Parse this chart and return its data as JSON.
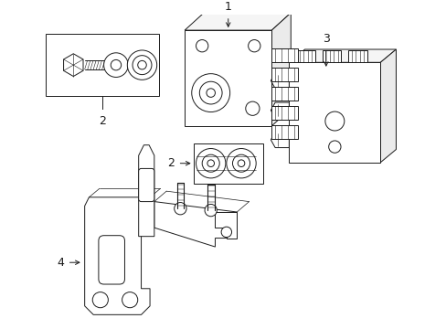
{
  "bg_color": "#ffffff",
  "line_color": "#1a1a1a",
  "lw": 0.7,
  "fig_w": 4.89,
  "fig_h": 3.6,
  "dpi": 100
}
